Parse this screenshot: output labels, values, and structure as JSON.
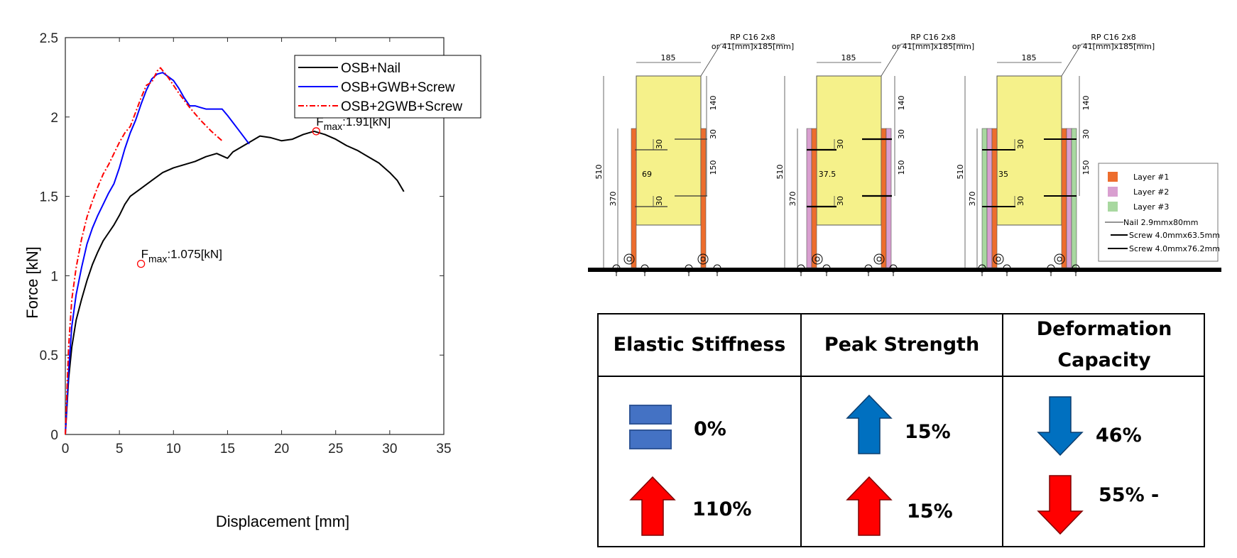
{
  "chart_data": {
    "type": "line",
    "xlabel": "Displacement [mm]",
    "ylabel": "Force [kN]",
    "xlim": [
      0,
      35
    ],
    "ylim": [
      0,
      2.5
    ],
    "xticks": [
      "0",
      "5",
      "10",
      "15",
      "20",
      "25",
      "30",
      "35"
    ],
    "yticks": [
      "0",
      "0.5",
      "1",
      "1.5",
      "2",
      "2.5"
    ],
    "grid": false,
    "legend_position": "top-right",
    "series": [
      {
        "name": "OSB+Nail",
        "color": "#000000",
        "style": "solid",
        "points": [
          [
            0,
            0
          ],
          [
            0.3,
            0.35
          ],
          [
            0.6,
            0.55
          ],
          [
            1,
            0.72
          ],
          [
            1.5,
            0.85
          ],
          [
            2,
            0.97
          ],
          [
            2.5,
            1.07
          ],
          [
            3,
            1.15
          ],
          [
            3.5,
            1.22
          ],
          [
            4,
            1.27
          ],
          [
            4.5,
            1.32
          ],
          [
            5,
            1.38
          ],
          [
            5.5,
            1.45
          ],
          [
            6,
            1.5
          ],
          [
            7,
            1.55
          ],
          [
            8,
            1.6
          ],
          [
            9,
            1.65
          ],
          [
            10,
            1.68
          ],
          [
            11,
            1.7
          ],
          [
            12,
            1.72
          ],
          [
            13,
            1.75
          ],
          [
            14,
            1.77
          ],
          [
            15,
            1.74
          ],
          [
            15.5,
            1.78
          ],
          [
            16,
            1.8
          ],
          [
            17,
            1.84
          ],
          [
            18,
            1.88
          ],
          [
            19,
            1.87
          ],
          [
            20,
            1.85
          ],
          [
            21,
            1.86
          ],
          [
            22,
            1.89
          ],
          [
            23,
            1.91
          ],
          [
            24,
            1.89
          ],
          [
            25,
            1.86
          ],
          [
            26,
            1.82
          ],
          [
            27,
            1.79
          ],
          [
            28,
            1.75
          ],
          [
            29,
            1.71
          ],
          [
            30,
            1.65
          ],
          [
            30.7,
            1.6
          ],
          [
            31.3,
            1.53
          ]
        ]
      },
      {
        "name": "OSB+GWB+Screw",
        "color": "#0000ff",
        "style": "solid",
        "points": [
          [
            0,
            0
          ],
          [
            0.3,
            0.4
          ],
          [
            0.6,
            0.68
          ],
          [
            1,
            0.88
          ],
          [
            1.5,
            1.05
          ],
          [
            2,
            1.2
          ],
          [
            2.5,
            1.3
          ],
          [
            3,
            1.38
          ],
          [
            3.5,
            1.45
          ],
          [
            4,
            1.52
          ],
          [
            4.5,
            1.58
          ],
          [
            5,
            1.68
          ],
          [
            5.5,
            1.8
          ],
          [
            6,
            1.9
          ],
          [
            6.5,
            1.98
          ],
          [
            7,
            2.08
          ],
          [
            7.5,
            2.17
          ],
          [
            8,
            2.24
          ],
          [
            8.5,
            2.27
          ],
          [
            9,
            2.28
          ],
          [
            10,
            2.23
          ],
          [
            10.5,
            2.18
          ],
          [
            11,
            2.12
          ],
          [
            11.5,
            2.07
          ],
          [
            12,
            2.07
          ],
          [
            12.5,
            2.06
          ],
          [
            13,
            2.05
          ],
          [
            14,
            2.05
          ],
          [
            14.5,
            2.05
          ],
          [
            15,
            2.01
          ],
          [
            16,
            1.92
          ],
          [
            17,
            1.83
          ]
        ]
      },
      {
        "name": "OSB+2GWB+Screw",
        "color": "#ff0000",
        "style": "dashdot",
        "points": [
          [
            0,
            0
          ],
          [
            0.3,
            0.55
          ],
          [
            0.6,
            0.85
          ],
          [
            1,
            1.05
          ],
          [
            1.5,
            1.23
          ],
          [
            2,
            1.37
          ],
          [
            2.5,
            1.47
          ],
          [
            3,
            1.56
          ],
          [
            3.5,
            1.64
          ],
          [
            4,
            1.7
          ],
          [
            4.5,
            1.77
          ],
          [
            5,
            1.84
          ],
          [
            5.5,
            1.9
          ],
          [
            6,
            1.94
          ],
          [
            6.5,
            2.03
          ],
          [
            7,
            2.12
          ],
          [
            7.5,
            2.2
          ],
          [
            8,
            2.22
          ],
          [
            8.5,
            2.29
          ],
          [
            8.8,
            2.31
          ],
          [
            9.5,
            2.25
          ],
          [
            10.5,
            2.15
          ],
          [
            11.5,
            2.06
          ],
          [
            12.5,
            1.98
          ],
          [
            13.5,
            1.91
          ],
          [
            14.5,
            1.85
          ]
        ]
      }
    ],
    "markers": [
      {
        "x": 7,
        "y": 1.075,
        "label_main": "F",
        "label_sub": "max",
        "label_value": ":1.075[kN]"
      },
      {
        "x": 23.2,
        "y": 1.91,
        "label_main": "F",
        "label_sub": "max",
        "label_value": ":1.91[kN]"
      }
    ]
  },
  "drawing": {
    "panels": [
      {
        "label": "RP C16 2x8",
        "label2": "or 41[mm]x185[mm]",
        "width": "185",
        "dim1": "140",
        "dim2": "30",
        "dim3": "150",
        "dim4": "30",
        "dim_a": "30",
        "dim_b": "30",
        "total": "510",
        "lower": "370",
        "offset": "69"
      },
      {
        "label": "RP C16 2x8",
        "label2": "or 41[mm]x185[mm]",
        "width": "185",
        "dim1": "140",
        "dim2": "30",
        "dim3": "150",
        "dim4": "30",
        "dim_a": "30",
        "dim_b": "30",
        "total": "510",
        "lower": "370",
        "offset": "37.5"
      },
      {
        "label": "RP C16 2x8",
        "label2": "or 41[mm]x185[mm]",
        "width": "185",
        "dim1": "140",
        "dim2": "30",
        "dim3": "150",
        "dim4": "30",
        "dim_a": "30",
        "dim_b": "30",
        "total": "510",
        "lower": "370",
        "offset": "35"
      }
    ],
    "legend": [
      {
        "label": "Layer #1",
        "color": "#ed6d2d"
      },
      {
        "label": "Layer #2",
        "color": "#d99fd0"
      },
      {
        "label": "Layer #3",
        "color": "#a8d8a0"
      },
      {
        "label": "Nail 2.9mmx80mm"
      },
      {
        "label": "Screw 4.0mmx63.5mm"
      },
      {
        "label": "Screw 4.0mmx76.2mm"
      }
    ]
  },
  "table": {
    "headers": [
      "Elastic Stiffness",
      "Peak Strength",
      "Deformation Capacity"
    ],
    "row1": [
      "0%",
      "15%",
      "46%"
    ],
    "row2": [
      "110%",
      "15%",
      "55% -"
    ],
    "colors": {
      "blue": "#4472c4",
      "dark_blue": "#0070c0",
      "red": "#ff0000"
    }
  }
}
